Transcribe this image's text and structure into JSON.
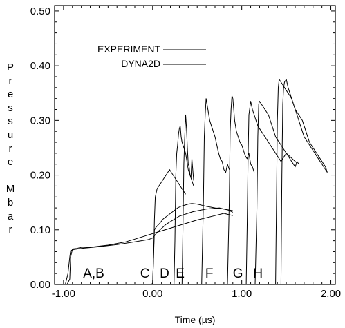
{
  "chart_data": {
    "type": "line",
    "title": "",
    "xlabel": "Time (µs)",
    "ylabel": "Pressure Mbar",
    "xlim": [
      -1.1,
      2.05
    ],
    "ylim": [
      0.0,
      0.51
    ],
    "xticks": [
      -1.0,
      0.0,
      1.0,
      2.0
    ],
    "xtick_labels": [
      "-1.00",
      "0.00",
      "1.00",
      "2.00"
    ],
    "yticks": [
      0.0,
      0.1,
      0.2,
      0.3,
      0.4,
      0.5
    ],
    "ytick_labels": [
      "0.00",
      "0.10",
      "0.20",
      "0.30",
      "0.40",
      "0.50"
    ],
    "grid": false,
    "legend_position": "top-left",
    "legend": [
      {
        "label": "EXPERIMENT"
      },
      {
        "label": "DYNA2D"
      }
    ],
    "annotations": [
      {
        "text": "A,B",
        "x": -0.78,
        "y": 0.01
      },
      {
        "text": "C",
        "x": -0.14,
        "y": 0.01
      },
      {
        "text": "D",
        "x": 0.08,
        "y": 0.01
      },
      {
        "text": "E",
        "x": 0.26,
        "y": 0.01
      },
      {
        "text": "F",
        "x": 0.59,
        "y": 0.01
      },
      {
        "text": "G",
        "x": 0.9,
        "y": 0.01
      },
      {
        "text": "H",
        "x": 1.13,
        "y": 0.01
      }
    ],
    "series": [
      {
        "group": "A,B",
        "x": [
          -1.1,
          -0.96,
          -0.93,
          -0.92,
          -0.9,
          -0.85,
          -0.8,
          -0.7,
          -0.6,
          -0.5,
          -0.4,
          -0.3,
          -0.2,
          -0.1,
          0.0,
          0.1,
          0.2,
          0.3,
          0.4,
          0.5,
          0.6,
          0.7,
          0.8,
          0.85,
          0.9
        ],
        "y": [
          0.0,
          0.0,
          0.01,
          0.05,
          0.065,
          0.066,
          0.068,
          0.068,
          0.07,
          0.072,
          0.075,
          0.078,
          0.083,
          0.088,
          0.093,
          0.098,
          0.103,
          0.108,
          0.113,
          0.118,
          0.122,
          0.126,
          0.13,
          0.128,
          0.126
        ]
      },
      {
        "group": "A,B",
        "x": [
          -1.05,
          -0.98,
          -0.95,
          -0.93,
          -0.92,
          -0.88,
          -0.8,
          -0.6,
          -0.4,
          -0.2,
          -0.05,
          0.0,
          0.05,
          0.15,
          0.3,
          0.45,
          0.6,
          0.75,
          0.85,
          0.9
        ],
        "y": [
          0.0,
          0.0,
          0.02,
          0.05,
          0.062,
          0.064,
          0.066,
          0.069,
          0.073,
          0.078,
          0.082,
          0.085,
          0.095,
          0.11,
          0.125,
          0.133,
          0.138,
          0.14,
          0.136,
          0.132
        ]
      },
      {
        "group": "C",
        "x": [
          -0.05,
          0.0,
          0.01,
          0.02,
          0.04,
          0.08,
          0.12,
          0.16,
          0.2,
          0.24,
          0.28,
          0.32,
          0.36,
          0.4,
          0.44,
          0.5,
          0.6,
          0.7,
          0.8,
          0.9
        ],
        "y": [
          0.0,
          0.0,
          0.05,
          0.1,
          0.105,
          0.112,
          0.12,
          0.125,
          0.13,
          0.135,
          0.14,
          0.143,
          0.145,
          0.147,
          0.148,
          0.147,
          0.143,
          0.14,
          0.138,
          0.135
        ]
      },
      {
        "group": "C",
        "x": [
          -0.02,
          0.0,
          0.01,
          0.02,
          0.03,
          0.05,
          0.07,
          0.09,
          0.11,
          0.13,
          0.15,
          0.17,
          0.19,
          0.21,
          0.23,
          0.25,
          0.27,
          0.29,
          0.31,
          0.33,
          0.35,
          0.37
        ],
        "y": [
          0.0,
          0.002,
          0.05,
          0.12,
          0.16,
          0.175,
          0.18,
          0.185,
          0.19,
          0.195,
          0.2,
          0.205,
          0.21,
          0.205,
          0.2,
          0.195,
          0.19,
          0.185,
          0.18,
          0.175,
          0.17,
          0.165
        ]
      },
      {
        "group": "D",
        "x": [
          0.2,
          0.24,
          0.25,
          0.26,
          0.27,
          0.28,
          0.29,
          0.3,
          0.31,
          0.32,
          0.33,
          0.34,
          0.35,
          0.36,
          0.37,
          0.38,
          0.39,
          0.4,
          0.42,
          0.44,
          0.46
        ],
        "y": [
          0.0,
          0.0,
          0.08,
          0.2,
          0.24,
          0.255,
          0.275,
          0.285,
          0.29,
          0.27,
          0.26,
          0.255,
          0.25,
          0.245,
          0.24,
          0.23,
          0.22,
          0.21,
          0.2,
          0.19,
          0.18
        ]
      },
      {
        "group": "E",
        "x": [
          0.3,
          0.33,
          0.34,
          0.35,
          0.36,
          0.37,
          0.38,
          0.39,
          0.4,
          0.41,
          0.42,
          0.43,
          0.44,
          0.45,
          0.46
        ],
        "y": [
          0.0,
          0.0,
          0.1,
          0.22,
          0.27,
          0.31,
          0.285,
          0.25,
          0.22,
          0.215,
          0.2,
          0.195,
          0.23,
          0.21,
          0.19
        ]
      },
      {
        "group": "F",
        "x": [
          0.5,
          0.55,
          0.57,
          0.58,
          0.59,
          0.6,
          0.62,
          0.64,
          0.66,
          0.68,
          0.7,
          0.72,
          0.74,
          0.76,
          0.78,
          0.8,
          0.82,
          0.84,
          0.86
        ],
        "y": [
          0.0,
          0.0,
          0.15,
          0.27,
          0.31,
          0.34,
          0.32,
          0.3,
          0.29,
          0.28,
          0.27,
          0.255,
          0.24,
          0.23,
          0.225,
          0.21,
          0.205,
          0.22,
          0.21
        ]
      },
      {
        "group": "G",
        "x": [
          0.78,
          0.84,
          0.86,
          0.87,
          0.88,
          0.89,
          0.9,
          0.92,
          0.94,
          0.96,
          0.98,
          1.0,
          1.02,
          1.04,
          1.06,
          1.08,
          1.1,
          1.12,
          1.14
        ],
        "y": [
          0.0,
          0.0,
          0.15,
          0.28,
          0.32,
          0.345,
          0.34,
          0.3,
          0.28,
          0.27,
          0.26,
          0.255,
          0.245,
          0.235,
          0.23,
          0.24,
          0.22,
          0.215,
          0.205
        ]
      },
      {
        "group": "H",
        "x": [
          1.0,
          1.05,
          1.06,
          1.07,
          1.08,
          1.1,
          1.12,
          1.14,
          1.16,
          1.18,
          1.2,
          1.22,
          1.24,
          1.26,
          1.28,
          1.3,
          1.32,
          1.34,
          1.36,
          1.38,
          1.4,
          1.42,
          1.44,
          1.46,
          1.48,
          1.5,
          1.52,
          1.54,
          1.56,
          1.58,
          1.6,
          1.62,
          1.64
        ],
        "y": [
          0.0,
          0.0,
          0.1,
          0.22,
          0.31,
          0.335,
          0.32,
          0.31,
          0.3,
          0.29,
          0.285,
          0.28,
          0.275,
          0.27,
          0.265,
          0.26,
          0.255,
          0.25,
          0.245,
          0.24,
          0.235,
          0.23,
          0.225,
          0.23,
          0.235,
          0.24,
          0.235,
          0.23,
          0.225,
          0.22,
          0.215,
          0.225,
          0.22
        ]
      },
      {
        "group": "H",
        "x": [
          1.1,
          1.15,
          1.17,
          1.18,
          1.19,
          1.2,
          1.22,
          1.24,
          1.26,
          1.28,
          1.3,
          1.32,
          1.34,
          1.36,
          1.38,
          1.4,
          1.42,
          1.44,
          1.46,
          1.48,
          1.5,
          1.52,
          1.54,
          1.56,
          1.58,
          1.6,
          1.62
        ],
        "y": [
          0.0,
          0.0,
          0.14,
          0.27,
          0.33,
          0.335,
          0.33,
          0.325,
          0.32,
          0.315,
          0.31,
          0.3,
          0.29,
          0.28,
          0.27,
          0.265,
          0.26,
          0.255,
          0.25,
          0.245,
          0.24,
          0.237,
          0.234,
          0.231,
          0.228,
          0.225,
          0.222
        ]
      },
      {
        "group": "H",
        "x": [
          1.3,
          1.38,
          1.39,
          1.4,
          1.41,
          1.42,
          1.44,
          1.46,
          1.48,
          1.5,
          1.52,
          1.54,
          1.56,
          1.58,
          1.6,
          1.62,
          1.64,
          1.66,
          1.68,
          1.7,
          1.72,
          1.74,
          1.76,
          1.78,
          1.8,
          1.82,
          1.84,
          1.86,
          1.88,
          1.9,
          1.92,
          1.94,
          1.96
        ],
        "y": [
          0.0,
          0.0,
          0.15,
          0.3,
          0.36,
          0.375,
          0.37,
          0.365,
          0.36,
          0.355,
          0.35,
          0.345,
          0.34,
          0.33,
          0.32,
          0.31,
          0.3,
          0.29,
          0.28,
          0.27,
          0.265,
          0.26,
          0.255,
          0.25,
          0.245,
          0.24,
          0.235,
          0.23,
          0.225,
          0.22,
          0.215,
          0.21,
          0.205
        ]
      },
      {
        "group": "H",
        "x": [
          1.38,
          1.44,
          1.45,
          1.46,
          1.47,
          1.48,
          1.5,
          1.52,
          1.54,
          1.56,
          1.58,
          1.6,
          1.62,
          1.64,
          1.66,
          1.68,
          1.7,
          1.72,
          1.74,
          1.76,
          1.78,
          1.8,
          1.82,
          1.84,
          1.86,
          1.88,
          1.9,
          1.92,
          1.94,
          1.96
        ],
        "y": [
          0.0,
          0.0,
          0.2,
          0.33,
          0.36,
          0.37,
          0.375,
          0.36,
          0.35,
          0.34,
          0.33,
          0.32,
          0.315,
          0.31,
          0.305,
          0.3,
          0.29,
          0.28,
          0.27,
          0.26,
          0.255,
          0.25,
          0.245,
          0.24,
          0.235,
          0.23,
          0.225,
          0.22,
          0.215,
          0.205
        ]
      }
    ]
  }
}
